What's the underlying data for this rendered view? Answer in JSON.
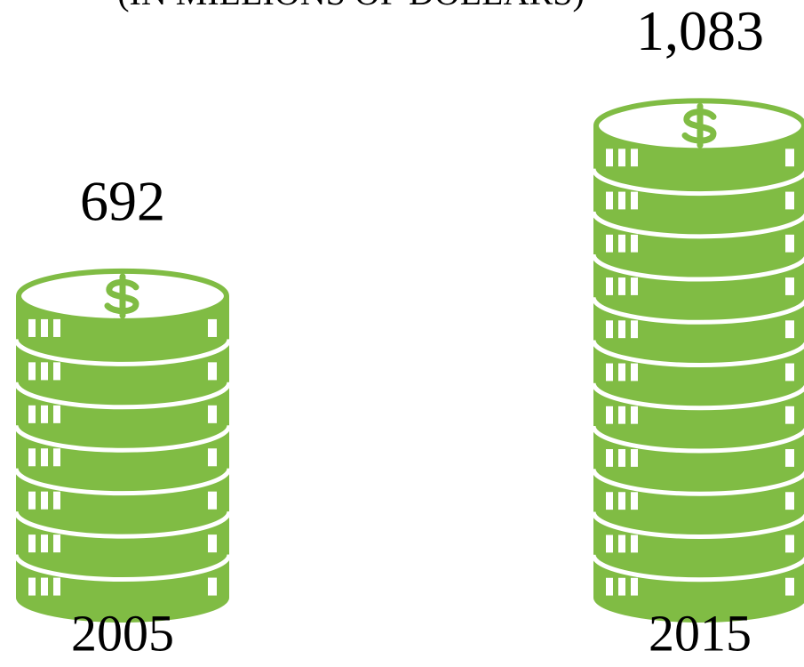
{
  "chart_data": {
    "type": "pictograph",
    "title": "(IN MILLIONS OF DOLLARS)",
    "categories": [
      "2005",
      "2015"
    ],
    "values": [
      692,
      1083
    ],
    "value_labels": [
      "692",
      "1,083"
    ],
    "color": "#80bc44"
  }
}
